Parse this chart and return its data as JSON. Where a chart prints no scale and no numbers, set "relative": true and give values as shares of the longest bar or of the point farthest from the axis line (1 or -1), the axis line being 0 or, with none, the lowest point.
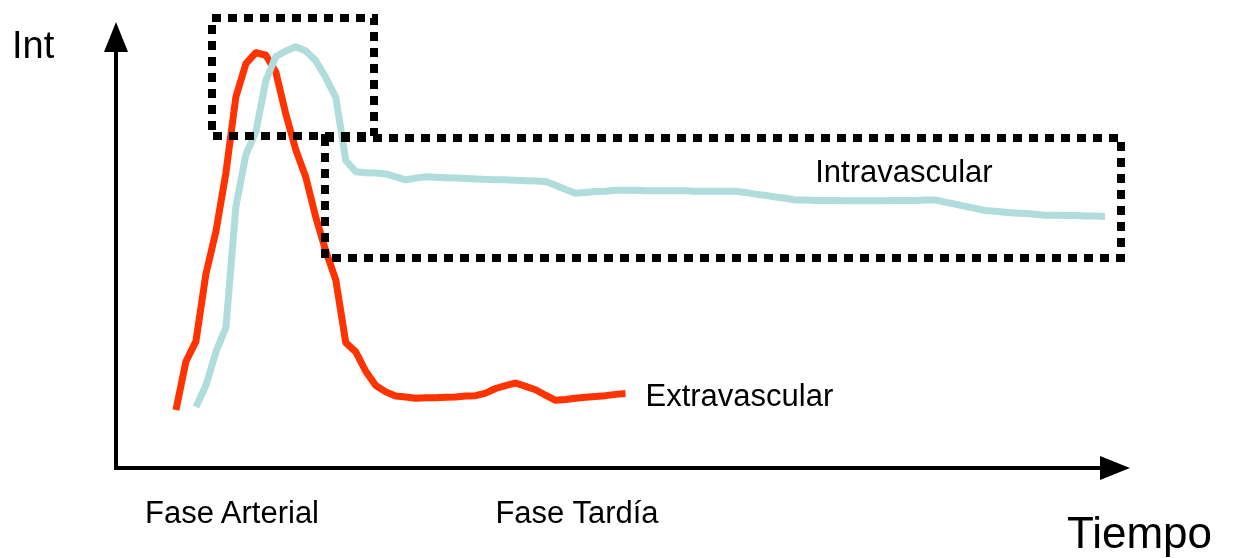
{
  "chart_data": {
    "type": "line",
    "relative": true,
    "xlabel": "Tiempo",
    "ylabel": "Int",
    "grid": false,
    "legend": false,
    "marker": "none",
    "line_style": "solid",
    "annotations": [
      "Fase Arterial",
      "Fase Tardía"
    ],
    "categories": [
      null,
      null,
      null,
      null,
      null,
      null,
      null,
      null,
      null,
      null,
      null,
      null,
      null,
      null,
      null,
      null,
      null,
      null,
      null,
      null,
      null,
      null,
      null,
      null,
      null,
      null,
      null,
      null,
      null,
      null,
      null,
      null,
      null,
      null,
      null,
      null,
      null,
      null,
      null,
      null,
      null,
      null,
      null,
      null,
      null,
      null,
      null,
      null,
      null,
      null,
      null,
      null,
      null,
      null,
      null,
      null,
      null,
      null,
      null,
      null,
      null,
      null,
      null,
      null,
      null,
      null,
      null,
      null,
      null,
      null,
      null,
      null,
      null,
      null,
      null,
      null,
      null,
      null,
      null,
      null,
      null,
      null,
      null,
      null,
      null,
      null,
      null,
      null,
      null,
      null,
      null,
      null,
      null,
      null
    ],
    "series": [
      {
        "name": "Extravascular",
        "color": "#ff3300",
        "values": [
          0.137,
          0.252,
          0.3,
          0.46,
          0.561,
          0.7,
          0.881,
          0.96,
          0.986,
          0.98,
          0.94,
          0.84,
          0.755,
          0.69,
          0.595,
          0.515,
          0.446,
          0.297,
          0.275,
          0.229,
          0.195,
          0.18,
          0.17,
          0.168,
          0.165,
          0.166,
          0.166,
          0.167,
          0.168,
          0.17,
          0.171,
          0.177,
          0.188,
          0.195,
          0.201,
          0.193,
          0.185,
          0.172,
          0.16,
          0.162,
          0.165,
          0.167,
          0.169,
          0.171,
          0.174,
          0.176,
          null,
          null,
          null,
          null,
          null,
          null,
          null,
          null,
          null,
          null,
          null,
          null,
          null,
          null,
          null,
          null,
          null,
          null,
          null,
          null,
          null,
          null,
          null,
          null,
          null,
          null,
          null,
          null,
          null,
          null,
          null,
          null,
          null,
          null,
          null,
          null,
          null,
          null,
          null,
          null,
          null,
          null,
          null,
          null,
          null,
          null,
          null,
          null
        ]
      },
      {
        "name": "Intravascular",
        "color": "#b0dcdc",
        "values": [
          null,
          null,
          0.144,
          0.195,
          0.275,
          0.333,
          0.62,
          0.744,
          0.798,
          0.92,
          0.977,
          0.99,
          1,
          0.99,
          0.967,
          0.927,
          0.88,
          0.73,
          0.703,
          0.701,
          0.7,
          0.698,
          0.691,
          0.684,
          0.688,
          0.691,
          0.69,
          0.689,
          0.688,
          0.687,
          0.686,
          0.685,
          0.684,
          0.684,
          0.683,
          0.682,
          0.681,
          0.68,
          0.671,
          0.661,
          0.652,
          0.654,
          0.656,
          0.657,
          0.659,
          0.659,
          0.659,
          0.658,
          0.658,
          0.658,
          0.658,
          0.658,
          0.657,
          0.657,
          0.657,
          0.657,
          0.657,
          0.654,
          0.65,
          0.647,
          0.643,
          0.64,
          0.636,
          0.636,
          0.635,
          0.635,
          0.635,
          0.634,
          0.634,
          0.634,
          0.634,
          0.634,
          0.635,
          0.635,
          0.635,
          0.636,
          0.636,
          0.631,
          0.626,
          0.621,
          0.616,
          0.611,
          0.609,
          0.607,
          0.605,
          0.604,
          0.602,
          0.6,
          0.6,
          0.599,
          0.599,
          0.598,
          0.598,
          0.597
        ]
      }
    ]
  }
}
